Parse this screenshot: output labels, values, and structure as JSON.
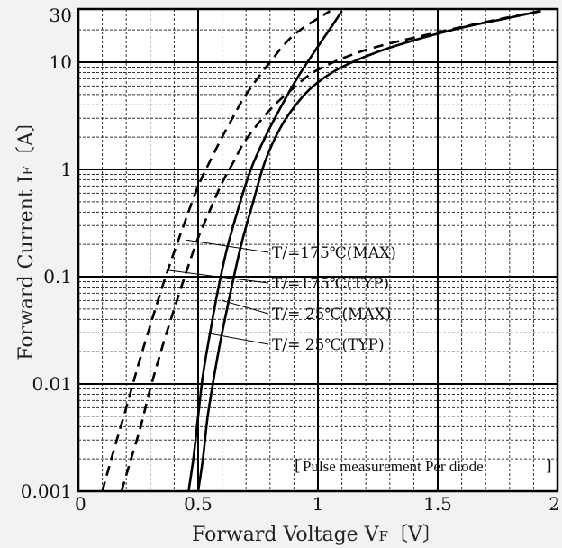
{
  "chart_data": {
    "type": "line",
    "xlabel": "Forward Voltage  V",
    "xlabel_sub": "F",
    "xlabel_unit": "〔V〕",
    "ylabel": "Forward Current  I",
    "ylabel_sub": "F",
    "ylabel_unit": "〔A〕",
    "xlim": [
      0,
      2
    ],
    "ylim": [
      0.001,
      30
    ],
    "y_scale": "log",
    "x_ticks": [
      "0",
      "0.5",
      "1",
      "1.5",
      "2"
    ],
    "y_ticks": [
      "0.001",
      "0.01",
      "0.1",
      "1",
      "10",
      "30"
    ],
    "grid": true,
    "note": "Pulse measurement Per diode",
    "series": [
      {
        "name": "Tj=175℃(MAX)",
        "label_text": "T/=175℃(MAX)",
        "style": "dashed",
        "x": [
          0.1,
          0.15,
          0.2,
          0.25,
          0.3,
          0.35,
          0.4,
          0.45,
          0.5,
          0.55,
          0.6,
          0.65,
          0.7,
          0.8,
          0.9,
          1.05
        ],
        "y": [
          0.001,
          0.0025,
          0.006,
          0.015,
          0.035,
          0.08,
          0.17,
          0.35,
          0.7,
          1.2,
          2.0,
          3.2,
          5.0,
          10,
          18,
          30
        ]
      },
      {
        "name": "Tj=175℃(TYP)",
        "label_text": "T/=175℃(TYP)",
        "style": "dashed",
        "x": [
          0.18,
          0.22,
          0.26,
          0.3,
          0.35,
          0.4,
          0.45,
          0.5,
          0.55,
          0.6,
          0.65,
          0.7,
          0.8,
          0.9,
          1.0,
          1.2,
          1.5,
          1.75,
          1.93
        ],
        "y": [
          0.001,
          0.002,
          0.004,
          0.009,
          0.022,
          0.05,
          0.11,
          0.23,
          0.42,
          0.75,
          1.2,
          1.9,
          3.6,
          5.8,
          8.5,
          13,
          19,
          25,
          30
        ]
      },
      {
        "name": "Tj= 25℃(MAX)",
        "label_text": "T/= 25℃(MAX)",
        "style": "solid",
        "x": [
          0.46,
          0.48,
          0.5,
          0.52,
          0.55,
          0.58,
          0.62,
          0.67,
          0.72,
          0.78,
          0.85,
          0.92,
          1.0,
          1.06,
          1.1
        ],
        "y": [
          0.001,
          0.002,
          0.005,
          0.012,
          0.03,
          0.07,
          0.18,
          0.45,
          1.0,
          2.0,
          4.0,
          7.5,
          14,
          22,
          30
        ]
      },
      {
        "name": "Tj= 25℃(TYP)",
        "label_text": "T/= 25℃(TYP)",
        "style": "solid",
        "x": [
          0.5,
          0.52,
          0.54,
          0.57,
          0.6,
          0.64,
          0.68,
          0.73,
          0.78,
          0.85,
          0.93,
          1.0,
          1.1,
          1.25,
          1.4,
          1.6,
          1.8,
          1.93
        ],
        "y": [
          0.001,
          0.002,
          0.005,
          0.013,
          0.03,
          0.08,
          0.2,
          0.5,
          1.2,
          2.6,
          4.6,
          6.5,
          9,
          12.5,
          16,
          21,
          26,
          30
        ]
      }
    ]
  }
}
